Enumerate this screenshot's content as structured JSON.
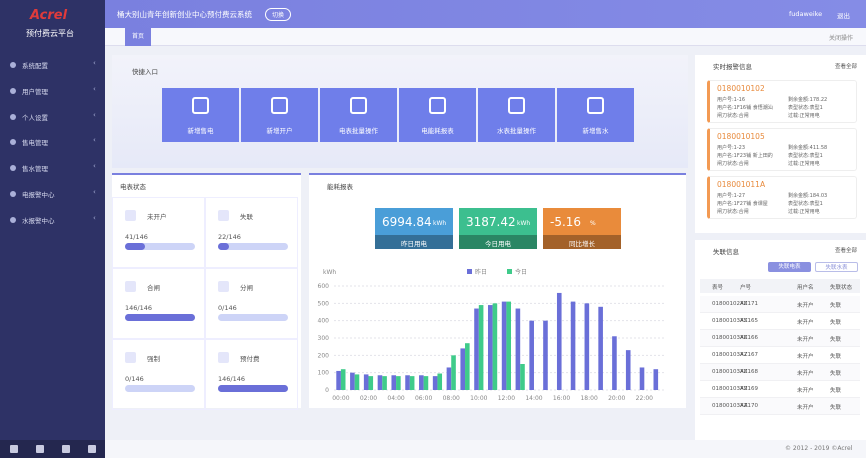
{
  "sidebar": {
    "brand": "Acrel",
    "platform": "预付费云平台",
    "menu": [
      "系统配置",
      "用户管理",
      "个人设置",
      "售电管理",
      "售水管理",
      "电报警中心",
      "水报警中心"
    ]
  },
  "header": {
    "title": "桶大别山青年创新创业中心预付费云系统",
    "switch": "切换",
    "user": "fudaweike",
    "logout": "退出"
  },
  "tabs": {
    "home": "首页",
    "close": "关闭操作"
  },
  "quick": {
    "title": "快捷入口",
    "items": [
      "新增售电",
      "新增开户",
      "电表批量操作",
      "电能耗报表",
      "水表批量操作",
      "新增售水"
    ]
  },
  "meter_status": {
    "title": "电表状态",
    "items": [
      {
        "label": "未开户",
        "count": "41/146"
      },
      {
        "label": "失联",
        "count": "22/146"
      },
      {
        "label": "合闸",
        "count": "146/146"
      },
      {
        "label": "分闸",
        "count": "0/146"
      },
      {
        "label": "强制",
        "count": "0/146"
      },
      {
        "label": "预付费",
        "count": "146/146"
      }
    ]
  },
  "energy": {
    "title": "能耗报表",
    "stats": [
      {
        "value": "6994.84",
        "unit": "kWh",
        "label": "昨日用电"
      },
      {
        "value": "3187.42",
        "unit": "kWh",
        "label": "今日用电"
      },
      {
        "value": "-5.16",
        "unit": "%",
        "label": "同比增长"
      }
    ]
  },
  "chart_data": {
    "type": "bar",
    "y_label": "kWh",
    "ylim": [
      0,
      600
    ],
    "yticks": [
      0,
      100,
      200,
      300,
      400,
      500,
      600
    ],
    "grid": true,
    "categories": [
      "00:00",
      null,
      "02:00",
      null,
      "04:00",
      null,
      "06:00",
      null,
      "08:00",
      null,
      "10:00",
      null,
      "12:00",
      null,
      "14:00",
      null,
      "16:00",
      null,
      "18:00",
      null,
      "20:00",
      null,
      "22:00",
      null
    ],
    "series": [
      {
        "name": "昨日",
        "color": "#6a6fd8",
        "values": [
          110,
          100,
          90,
          85,
          85,
          85,
          85,
          80,
          130,
          240,
          470,
          490,
          510,
          470,
          400,
          400,
          560,
          510,
          500,
          480,
          310,
          230,
          130,
          120
        ]
      },
      {
        "name": "今日",
        "color": "#3fcb8a",
        "values": [
          120,
          90,
          80,
          80,
          80,
          80,
          80,
          95,
          200,
          270,
          490,
          500,
          510,
          150,
          null,
          null,
          null,
          null,
          null,
          null,
          null,
          null,
          null,
          null
        ]
      }
    ]
  },
  "alarms": {
    "title": "实时报警信息",
    "more": "查看全部",
    "cards": [
      {
        "id": "0180010102",
        "lines": [
          "用户号:1-16",
          "剩余金额:178.22",
          "用户名:1F16铺 食悟潮汕",
          "表型状态:表型1",
          "闸刀状态:合闸",
          "过载:正常用电"
        ]
      },
      {
        "id": "0180010105",
        "lines": [
          "用户号:1-23",
          "剩余金额:411.58",
          "用户名:1F23铺 新上田的",
          "表型状态:表型1",
          "闸刀状态:合闸",
          "过载:正常用电"
        ]
      },
      {
        "id": "018001011A",
        "lines": [
          "用户号:1-27",
          "剩余金额:184.03",
          "用户名:1F27铺 食课屋",
          "表型状态:表型1",
          "闸刀状态:合闸",
          "过载:正常用电"
        ]
      }
    ]
  },
  "lost": {
    "title": "失联信息",
    "more": "查看全部",
    "buttons": [
      "失联电表",
      "失联水表"
    ],
    "columns": [
      "表号",
      "户号",
      "用户名",
      "失联状态"
    ],
    "rows": [
      [
        "01800102A8",
        "XZ171",
        "未开户",
        "失联"
      ],
      [
        "01800103A5",
        "XZ165",
        "未开户",
        "失联"
      ],
      [
        "01800103A6",
        "XZ166",
        "未开户",
        "失联"
      ],
      [
        "01800103A7",
        "XZ167",
        "未开户",
        "失联"
      ],
      [
        "01800103A8",
        "XZ168",
        "未开户",
        "失联"
      ],
      [
        "01800103A9",
        "XZ169",
        "未开户",
        "失联"
      ],
      [
        "01800103AA",
        "XZ170",
        "未开户",
        "失联"
      ]
    ]
  },
  "footer": "© 2012 - 2019 ©Acrel"
}
